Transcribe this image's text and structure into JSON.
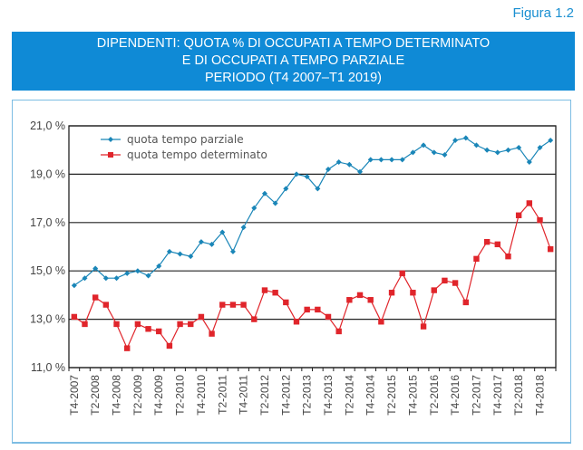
{
  "figure_label": "Figura 1.2",
  "title_lines": [
    "DIPENDENTI: QUOTA % DI OCCUPATI A TEMPO DETERMINATO",
    "E DI OCCUPATI A TEMPO PARZIALE",
    "PERIODO (T4 2007–T1 2019)"
  ],
  "colors": {
    "banner": "#0f8ad6",
    "parziale": "#1a86b8",
    "determinato": "#e0252b"
  },
  "chart_data": {
    "type": "line",
    "title": "DIPENDENTI: QUOTA % DI OCCUPATI A TEMPO DETERMINATO E DI OCCUPATI A TEMPO PARZIALE - PERIODO (T4 2007–T1 2019)",
    "xlabel": "",
    "ylabel": "",
    "ylim": [
      11,
      21
    ],
    "yticks": [
      11,
      13,
      15,
      17,
      19,
      21
    ],
    "ytick_labels": [
      "11,0 %",
      "13,0 %",
      "15,0 %",
      "17,0 %",
      "19,0 %",
      "21,0 %"
    ],
    "grid": true,
    "legend_position": "top-left",
    "x_tick_labels": [
      "T4-2007",
      "T2-2008",
      "T4-2008",
      "T2-2009",
      "T4-2009",
      "T2-2010",
      "T4-2010",
      "T2-2011",
      "T4-2011",
      "T2-2012",
      "T4-2012",
      "T2-2013",
      "T4-2013",
      "T2-2014",
      "T4-2014",
      "T2-2015",
      "T4-2015",
      "T2-2016",
      "T4-2016",
      "T2-2017",
      "T4-2017",
      "T2-2018",
      "T4-2018"
    ],
    "x": [
      "T4-2007",
      "T1-2008",
      "T2-2008",
      "T3-2008",
      "T4-2008",
      "T1-2009",
      "T2-2009",
      "T3-2009",
      "T4-2009",
      "T1-2010",
      "T2-2010",
      "T3-2010",
      "T4-2010",
      "T1-2011",
      "T2-2011",
      "T3-2011",
      "T4-2011",
      "T1-2012",
      "T2-2012",
      "T3-2012",
      "T4-2012",
      "T1-2013",
      "T2-2013",
      "T3-2013",
      "T4-2013",
      "T1-2014",
      "T2-2014",
      "T3-2014",
      "T4-2014",
      "T1-2015",
      "T2-2015",
      "T3-2015",
      "T4-2015",
      "T1-2016",
      "T2-2016",
      "T3-2016",
      "T4-2016",
      "T1-2017",
      "T2-2017",
      "T3-2017",
      "T4-2017",
      "T1-2018",
      "T2-2018",
      "T3-2018",
      "T4-2018",
      "T1-2019"
    ],
    "series": [
      {
        "name": "quota tempo parziale",
        "marker": "diamond",
        "values": [
          14.4,
          14.7,
          15.1,
          14.7,
          14.7,
          14.9,
          15.0,
          14.8,
          15.2,
          15.8,
          15.7,
          15.6,
          16.2,
          16.1,
          16.6,
          15.8,
          16.8,
          17.6,
          18.2,
          17.8,
          18.4,
          19.0,
          18.9,
          18.4,
          19.2,
          19.5,
          19.4,
          19.1,
          19.6,
          19.6,
          19.6,
          19.6,
          19.9,
          20.2,
          19.9,
          19.8,
          20.4,
          20.5,
          20.2,
          20.0,
          19.9,
          20.0,
          20.1,
          19.5,
          20.1,
          20.4
        ]
      },
      {
        "name": "quota tempo determinato",
        "marker": "square",
        "values": [
          13.1,
          12.8,
          13.9,
          13.6,
          12.8,
          11.8,
          12.8,
          12.6,
          12.5,
          11.9,
          12.8,
          12.8,
          13.1,
          12.4,
          13.6,
          13.6,
          13.6,
          13.0,
          14.2,
          14.1,
          13.7,
          12.9,
          13.4,
          13.4,
          13.1,
          12.5,
          13.8,
          14.0,
          13.8,
          12.9,
          14.1,
          14.9,
          14.1,
          12.7,
          14.2,
          14.6,
          14.5,
          13.7,
          15.5,
          16.2,
          16.1,
          15.6,
          17.3,
          17.8,
          17.1,
          15.9
        ]
      }
    ]
  }
}
